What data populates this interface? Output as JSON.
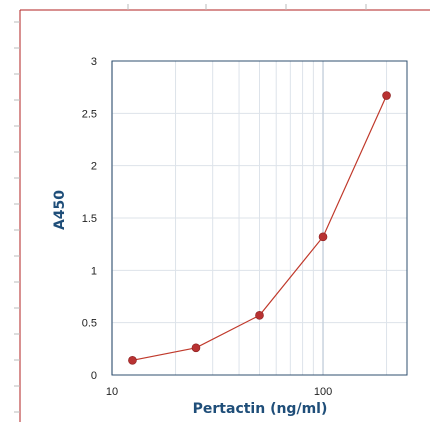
{
  "chart_data": {
    "type": "line",
    "title": "",
    "xlabel": "Pertactin (ng/ml)",
    "ylabel": "A450",
    "x_scale": "log",
    "xlim": [
      10,
      250
    ],
    "ylim": [
      0,
      3
    ],
    "x_ticks": [
      10,
      100
    ],
    "x_tick_labels": [
      "10",
      "100"
    ],
    "y_ticks": [
      0,
      0.5,
      1,
      1.5,
      2,
      2.5,
      3
    ],
    "y_tick_labels": [
      "0",
      "0.5",
      "1",
      "1.5",
      "2",
      "2.5",
      "3"
    ],
    "grid": true,
    "legend": "none",
    "series": [
      {
        "color": "#c0392b",
        "x": [
          12.5,
          25,
          50,
          100,
          200
        ],
        "y": [
          0.14,
          0.26,
          0.57,
          1.32,
          2.67
        ]
      }
    ]
  },
  "colors": {
    "frame": "#b22222",
    "plot_border": "#2f4f6f",
    "grid": "#dde3ea",
    "axis_title": "#1f4e79"
  }
}
